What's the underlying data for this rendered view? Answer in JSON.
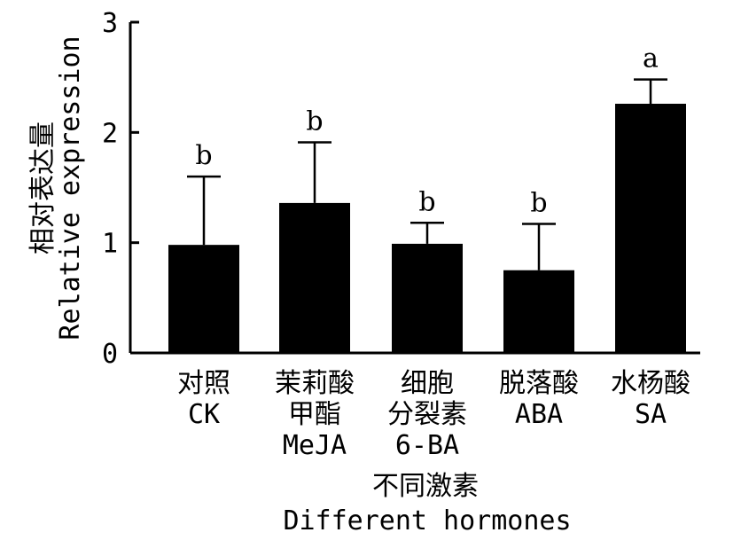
{
  "chart_data": {
    "type": "bar",
    "categories": [
      {
        "zh": "对照",
        "en": "CK",
        "zh2": "",
        "en2": ""
      },
      {
        "zh": "茉莉酸",
        "en": "甲酯",
        "zh2": "MeJA",
        "en2": ""
      },
      {
        "zh": "细胞",
        "en": "分裂素",
        "zh2": "6-BA",
        "en2": ""
      },
      {
        "zh": "脱落酸",
        "en": "ABA",
        "zh2": "",
        "en2": ""
      },
      {
        "zh": "水杨酸",
        "en": "SA",
        "zh2": "",
        "en2": ""
      }
    ],
    "values": [
      0.98,
      1.36,
      0.99,
      0.75,
      2.26
    ],
    "errors": [
      0.62,
      0.55,
      0.19,
      0.42,
      0.22
    ],
    "significance": [
      "b",
      "b",
      "b",
      "b",
      "a"
    ],
    "ylim": [
      0,
      3
    ],
    "yticks": [
      "0",
      "1",
      "2",
      "3"
    ],
    "ylabel_zh": "相对表达量",
    "ylabel_en": "Relative expression",
    "xlabel_zh": "不同激素",
    "xlabel_en": "Different hormones",
    "bar_color": "#000000"
  }
}
